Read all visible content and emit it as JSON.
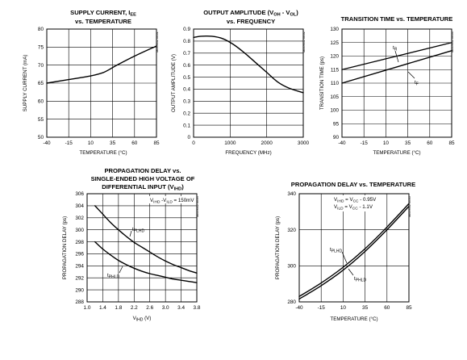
{
  "chart_data": [
    {
      "type": "line",
      "title": "SUPPLY CURRENT, IEE vs. TEMPERATURE",
      "xlabel": "TEMPERATURE (°C)",
      "ylabel": "SUPPLY CURRENT (mA)",
      "xlim": [
        -40,
        85
      ],
      "ylim": [
        50,
        80
      ],
      "x_ticks": [
        "-40",
        "-15",
        "10",
        "35",
        "60",
        "85"
      ],
      "y_ticks": [
        "50",
        "55",
        "60",
        "65",
        "70",
        "75",
        "80"
      ],
      "grid": true,
      "code": "MAX9312 toc01",
      "series": [
        {
          "x": [
            -40,
            -15,
            10,
            25,
            40,
            60,
            85
          ],
          "y": [
            65,
            66,
            67,
            68,
            70,
            72.5,
            75.3
          ]
        }
      ]
    },
    {
      "type": "line",
      "title": "OUTPUT AMPLITUDE (VOH - VOL) vs. FREQUENCY",
      "xlabel": "FREQUENCY (MHz)",
      "ylabel": "OUTPUT AMPLITUDE (V)",
      "xlim": [
        0,
        3000
      ],
      "ylim": [
        0,
        0.9
      ],
      "x_ticks": [
        "0",
        "1000",
        "2000",
        "3000"
      ],
      "y_ticks": [
        "0",
        "0.1",
        "0.2",
        "0.3",
        "0.4",
        "0.5",
        "0.6",
        "0.7",
        "0.8",
        "0.9"
      ],
      "grid": true,
      "code": "MAX9312 toc02",
      "series": [
        {
          "x": [
            0,
            200,
            500,
            800,
            1100,
            1400,
            1700,
            2000,
            2300,
            2600,
            3000
          ],
          "y": [
            0.83,
            0.84,
            0.84,
            0.82,
            0.77,
            0.7,
            0.62,
            0.54,
            0.46,
            0.41,
            0.37
          ]
        }
      ]
    },
    {
      "type": "line",
      "title": "TRANSITION TIME vs. TEMPERATURE",
      "xlabel": "TEMPERATURE (°C)",
      "ylabel": "TRANSITION TIME (ps)",
      "xlim": [
        -40,
        85
      ],
      "ylim": [
        90,
        130
      ],
      "x_ticks": [
        "-40",
        "-15",
        "10",
        "35",
        "60",
        "85"
      ],
      "y_ticks": [
        "90",
        "95",
        "100",
        "105",
        "110",
        "115",
        "120",
        "125",
        "130"
      ],
      "grid": true,
      "code": "MAX9312 toc03",
      "series": [
        {
          "name": "tR",
          "x": [
            -40,
            85
          ],
          "y": [
            115,
            125
          ]
        },
        {
          "name": "tF",
          "x": [
            -40,
            85
          ],
          "y": [
            110,
            122
          ]
        }
      ],
      "annotations": [
        "tR",
        "tF"
      ]
    },
    {
      "type": "line",
      "title": "PROPAGATION DELAY vs. SINGLE-ENDED HIGH VOLTAGE OF DIFFERENTIAL INPUT (VIHD)",
      "xlabel": "VIHD (V)",
      "ylabel": "PROPAGATION DELAY (ps)",
      "xlim": [
        1.0,
        3.8
      ],
      "ylim": [
        288,
        306
      ],
      "x_ticks": [
        "1.0",
        "1.4",
        "1.8",
        "2.2",
        "2.6",
        "3.0",
        "3.4",
        "3.8"
      ],
      "y_ticks": [
        "288",
        "290",
        "292",
        "294",
        "296",
        "298",
        "300",
        "302",
        "304",
        "306"
      ],
      "grid": true,
      "code": "MAX9312 toc04",
      "series": [
        {
          "name": "tPLHD",
          "x": [
            1.2,
            1.4,
            1.6,
            1.8,
            2.0,
            2.2,
            2.4,
            2.6,
            2.8,
            3.0,
            3.2,
            3.4,
            3.6,
            3.8
          ],
          "y": [
            304,
            302.6,
            301.2,
            300,
            298.9,
            297.9,
            297.1,
            296.3,
            295.5,
            294.8,
            294.2,
            293.7,
            293.2,
            292.8
          ]
        },
        {
          "name": "tPHLD",
          "x": [
            1.2,
            1.4,
            1.6,
            1.8,
            2.0,
            2.2,
            2.4,
            2.6,
            2.8,
            3.0,
            3.2,
            3.4,
            3.6,
            3.8
          ],
          "y": [
            298,
            296.8,
            295.8,
            294.9,
            294.2,
            293.6,
            293.1,
            292.7,
            292.4,
            292.1,
            291.8,
            291.6,
            291.4,
            291.2
          ]
        }
      ],
      "annotations": [
        "VIHD - VILD = 150mV",
        "tPLHD",
        "tPHLD"
      ]
    },
    {
      "type": "line",
      "title": "PROPAGATION DELAY vs. TEMPERATURE",
      "xlabel": "TEMPERATURE (°C)",
      "ylabel": "PROPAGATION DELAY (ps)",
      "xlim": [
        -40,
        85
      ],
      "ylim": [
        280,
        340
      ],
      "x_ticks": [
        "-40",
        "-15",
        "10",
        "35",
        "60",
        "85"
      ],
      "y_ticks": [
        "280",
        "300",
        "320",
        "340"
      ],
      "grid": true,
      "code": "MAX9312 toc05",
      "series": [
        {
          "name": "tPLHD",
          "x": [
            -40,
            -15,
            10,
            35,
            60,
            85
          ],
          "y": [
            283,
            290.5,
            299.2,
            309.5,
            321.5,
            334.5
          ]
        },
        {
          "name": "tPHLD",
          "x": [
            -40,
            -15,
            10,
            35,
            60,
            85
          ],
          "y": [
            281.6,
            289,
            297.6,
            308,
            320,
            333
          ]
        }
      ],
      "annotations": [
        "VIHD = VCC - 0.95V",
        "VILD = VCC - 1.1V",
        "tPLHD",
        "tPHLD"
      ]
    }
  ]
}
